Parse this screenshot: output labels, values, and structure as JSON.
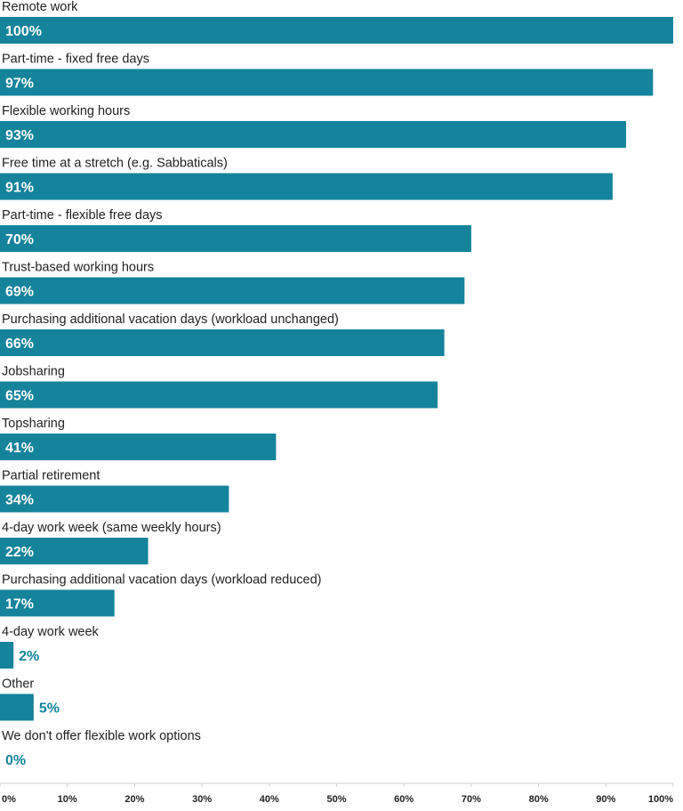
{
  "chart_data": {
    "type": "bar",
    "orientation": "horizontal",
    "categories": [
      "Remote work",
      "Part-time - fixed free days",
      "Flexible working hours",
      "Free time at a stretch (e.g. Sabbaticals)",
      "Part-time - flexible free days",
      "Trust-based working hours",
      "Purchasing additional vacation days (workload unchanged)",
      "Jobsharing",
      "Topsharing",
      "Partial retirement",
      "4-day work week (same weekly hours)",
      "Purchasing additional vacation days (workload reduced)",
      "4-day work week",
      "Other",
      "We don't offer flexible work options"
    ],
    "values": [
      100,
      97,
      93,
      91,
      70,
      69,
      66,
      65,
      41,
      34,
      22,
      17,
      2,
      5,
      0
    ],
    "value_labels": [
      "100%",
      "97%",
      "93%",
      "91%",
      "70%",
      "69%",
      "66%",
      "65%",
      "41%",
      "34%",
      "22%",
      "17%",
      "2%",
      "5%",
      "0%"
    ],
    "x_ticks": [
      "0%",
      "10%",
      "20%",
      "30%",
      "40%",
      "50%",
      "60%",
      "70%",
      "80%",
      "90%",
      "100%"
    ],
    "xlim": [
      0,
      100
    ],
    "grid": false,
    "title": "",
    "xlabel": "",
    "ylabel": "",
    "colors": {
      "bar": "#14839b",
      "label_inside": "#ffffff",
      "label_outside": "#14839b",
      "category_text": "#222222",
      "tick_text": "#222222",
      "axis": "#cfcfcf"
    }
  }
}
